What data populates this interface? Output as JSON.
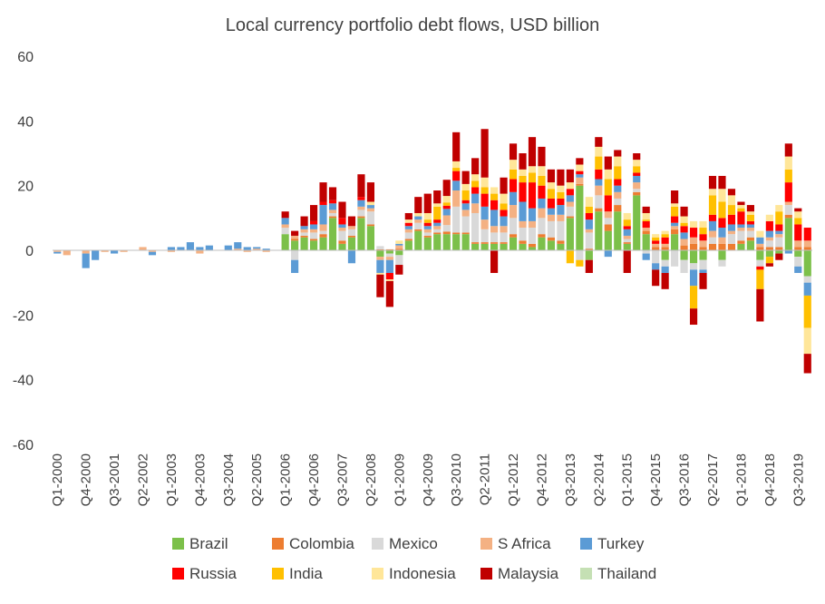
{
  "chart_data": {
    "type": "bar",
    "stacked": true,
    "title": "Local currency portfolio debt flows, USD billion",
    "xlabel": "",
    "ylabel": "",
    "ylim": [
      -60,
      60
    ],
    "yticks": [
      60,
      40,
      20,
      0,
      -20,
      -40,
      -60
    ],
    "grid": false,
    "legend_position": "bottom",
    "x_tick_labels": [
      "Q1-2000",
      "Q4-2000",
      "Q3-2001",
      "Q2-2002",
      "Q1-2003",
      "Q4-2003",
      "Q3-2004",
      "Q2-2005",
      "Q1-2006",
      "Q4-2006",
      "Q3-2007",
      "Q2-2008",
      "Q1-2009",
      "Q4-2009",
      "Q3-2010",
      "Q2-2011",
      "Q1-2012",
      "Q4-2012",
      "Q3-2013",
      "Q2-2014",
      "Q1-2015",
      "Q4-2015",
      "Q3-2016",
      "Q2-2017",
      "Q1-2018",
      "Q4-2018",
      "Q3-2019"
    ],
    "x_tick_every": 3,
    "series_names": [
      "Brazil",
      "Colombia",
      "Mexico",
      "S Africa",
      "Turkey",
      "Russia",
      "India",
      "Indonesia",
      "Malaysia",
      "Thailand"
    ],
    "series_colors": [
      "#7cc04a",
      "#ed7d31",
      "#d9d9d9",
      "#f4b183",
      "#5b9bd5",
      "#ff0000",
      "#ffc000",
      "#ffe699",
      "#c00000",
      "#c5e0b4"
    ],
    "x": [
      "Q1-2000",
      "Q2-2000",
      "Q3-2000",
      "Q4-2000",
      "Q1-2001",
      "Q2-2001",
      "Q3-2001",
      "Q4-2001",
      "Q1-2002",
      "Q2-2002",
      "Q3-2002",
      "Q4-2002",
      "Q1-2003",
      "Q2-2003",
      "Q3-2003",
      "Q4-2003",
      "Q1-2004",
      "Q2-2004",
      "Q3-2004",
      "Q4-2004",
      "Q1-2005",
      "Q2-2005",
      "Q3-2005",
      "Q4-2005",
      "Q1-2006",
      "Q2-2006",
      "Q3-2006",
      "Q4-2006",
      "Q1-2007",
      "Q2-2007",
      "Q3-2007",
      "Q4-2007",
      "Q1-2008",
      "Q2-2008",
      "Q3-2008",
      "Q4-2008",
      "Q1-2009",
      "Q2-2009",
      "Q3-2009",
      "Q4-2009",
      "Q1-2010",
      "Q2-2010",
      "Q3-2010",
      "Q4-2010",
      "Q1-2011",
      "Q2-2011",
      "Q3-2011",
      "Q4-2011",
      "Q1-2012",
      "Q2-2012",
      "Q3-2012",
      "Q4-2012",
      "Q1-2013",
      "Q2-2013",
      "Q3-2013",
      "Q4-2013",
      "Q1-2014",
      "Q2-2014",
      "Q3-2014",
      "Q4-2014",
      "Q1-2015",
      "Q2-2015",
      "Q3-2015",
      "Q4-2015",
      "Q1-2016",
      "Q2-2016",
      "Q3-2016",
      "Q4-2016",
      "Q1-2017",
      "Q2-2017",
      "Q3-2017",
      "Q4-2017",
      "Q1-2018",
      "Q2-2018",
      "Q3-2018",
      "Q4-2018",
      "Q1-2019",
      "Q2-2019",
      "Q3-2019",
      "Q4-2019"
    ],
    "series": [
      {
        "name": "Brazil",
        "values": [
          0,
          0,
          0,
          0,
          0,
          0,
          0,
          0,
          0,
          0,
          0,
          0,
          0,
          0,
          0,
          0,
          0,
          0,
          0,
          0,
          0,
          0,
          0,
          0,
          5,
          3,
          4,
          3,
          4,
          10,
          2,
          4,
          10,
          7.5,
          -2,
          -1,
          -1.5,
          3,
          6,
          4,
          5,
          5,
          5,
          5,
          2,
          2,
          2,
          2,
          4,
          2,
          1,
          4,
          3,
          2,
          10,
          20,
          -3,
          12,
          6,
          12,
          2,
          17,
          5,
          0,
          -3,
          5,
          -3,
          -4,
          -3,
          0,
          -3,
          0,
          2,
          3,
          -3,
          -2,
          -1,
          10,
          -2,
          -8
        ]
      },
      {
        "name": "Colombia",
        "values": [
          0,
          0,
          0,
          0,
          0,
          0,
          0,
          0,
          0,
          0,
          0,
          0,
          0,
          0,
          0,
          0,
          0,
          0,
          0,
          0,
          0,
          0,
          0,
          0,
          0,
          0.5,
          0.5,
          0.5,
          1,
          0.5,
          1,
          0.5,
          0.5,
          0.5,
          0.3,
          0.3,
          0.5,
          0.5,
          0.5,
          0.5,
          0.5,
          0.8,
          0.5,
          0.5,
          0.5,
          0.5,
          0.5,
          0.5,
          1,
          1,
          1,
          1,
          1,
          1,
          0.5,
          0.5,
          0.5,
          1,
          2,
          2,
          0.5,
          1,
          1,
          1,
          1,
          1.5,
          1.5,
          2,
          1,
          2,
          2,
          2,
          1,
          1,
          1,
          1,
          1,
          1,
          1,
          1
        ]
      },
      {
        "name": "Mexico",
        "values": [
          0,
          0,
          0,
          0,
          0,
          0,
          0,
          0,
          0,
          0,
          0,
          0,
          0,
          0,
          0,
          0,
          0,
          0,
          0,
          0,
          0,
          0,
          0,
          0,
          2,
          -3,
          1,
          2,
          1,
          1,
          3,
          2,
          2,
          4,
          1,
          -1,
          -3,
          2,
          2,
          1,
          1,
          2,
          8,
          5,
          9,
          4,
          3,
          3,
          5,
          4,
          5,
          5,
          5,
          6,
          3,
          -3,
          5,
          4,
          2,
          2,
          1,
          1,
          -1,
          -4,
          -2,
          -5,
          -4,
          -2,
          -3,
          2,
          -2,
          3,
          3,
          2,
          -2,
          2,
          3,
          3,
          -3,
          -2
        ]
      },
      {
        "name": "S Africa",
        "values": [
          -0.5,
          -1.5,
          0,
          -1,
          0,
          -0.5,
          0,
          -0.5,
          0,
          1,
          -0.5,
          0,
          -0.5,
          0,
          0,
          -1,
          0,
          0,
          0,
          0.5,
          -0.5,
          0.5,
          -0.5,
          0,
          1,
          1,
          1,
          1,
          2,
          1,
          1,
          1,
          1,
          1,
          -1,
          -1,
          1,
          1,
          1,
          1,
          1,
          3,
          5,
          2,
          3,
          3,
          2,
          2,
          4,
          2,
          2,
          3,
          2,
          2,
          1.5,
          2,
          1,
          3,
          2,
          2,
          1,
          2,
          1,
          1,
          1,
          1,
          2,
          2,
          2,
          2,
          2,
          1,
          1,
          1,
          1,
          1,
          1,
          1,
          2,
          2
        ]
      },
      {
        "name": "Turkey",
        "values": [
          -0.5,
          0,
          0,
          -4.5,
          -3,
          0,
          -1,
          0,
          0,
          0,
          -1,
          0,
          1,
          1,
          2.5,
          1,
          1.5,
          0,
          1.5,
          2,
          1,
          0.5,
          0.5,
          0,
          2,
          -4,
          1,
          1.5,
          6,
          2,
          1,
          -4,
          2,
          1,
          -4,
          -4,
          0.5,
          1,
          1,
          1,
          1,
          2,
          3,
          2,
          3,
          4,
          5,
          3,
          4,
          6,
          4,
          3,
          2,
          3,
          2,
          1,
          3,
          2,
          -2,
          2,
          2,
          2,
          -2,
          -2,
          -2,
          1,
          2,
          -5,
          -1,
          3,
          3,
          2,
          1,
          1,
          2,
          2,
          1,
          -1,
          -2,
          -4
        ]
      },
      {
        "name": "Russia",
        "values": [
          0,
          0,
          0,
          0,
          0,
          0,
          0,
          0,
          0,
          0,
          0,
          0,
          0,
          0,
          0,
          0,
          0,
          0,
          0,
          0,
          0,
          0,
          0,
          0,
          0,
          0,
          0,
          1,
          1,
          1,
          2,
          0,
          1,
          0,
          0,
          -2,
          0,
          1,
          0,
          1,
          1,
          1,
          3,
          1,
          2,
          4,
          3,
          2,
          4,
          6,
          8,
          4,
          3,
          2,
          2,
          1,
          2,
          3,
          5,
          2,
          1,
          1,
          2,
          1,
          2,
          2,
          2,
          3,
          2,
          2,
          3,
          3,
          4,
          1,
          -1,
          3,
          2,
          6,
          5,
          4
        ]
      },
      {
        "name": "India",
        "values": [
          0,
          0,
          0,
          0,
          0,
          0,
          0,
          0,
          0,
          0,
          0,
          0,
          0,
          0,
          0,
          0,
          0,
          0,
          0,
          0,
          0,
          0,
          0,
          0,
          0,
          0,
          0,
          0,
          0,
          0,
          0,
          0,
          0,
          0,
          0,
          0,
          0,
          0,
          0,
          1,
          4,
          1,
          1,
          3,
          2,
          2,
          2,
          2,
          3,
          2,
          3,
          3,
          3,
          2,
          -4,
          -2,
          2,
          4,
          5,
          4,
          2,
          2,
          0.5,
          1,
          1,
          3,
          1,
          -7,
          2,
          6,
          5,
          3,
          1,
          2,
          -6,
          -2,
          4,
          4,
          2,
          -10
        ]
      },
      {
        "name": "Indonesia",
        "values": [
          0,
          0,
          0,
          0,
          0,
          0,
          0,
          0,
          0,
          0,
          0,
          0,
          0,
          0,
          0,
          0,
          0,
          0,
          0,
          0,
          0,
          0,
          0,
          0,
          0,
          0,
          0,
          0,
          0,
          0,
          0,
          0,
          0,
          1,
          -0.5,
          -0.5,
          1,
          1,
          1,
          2,
          1,
          2,
          2,
          2,
          2,
          3,
          2,
          3,
          3,
          2,
          2,
          3,
          2,
          2,
          2,
          2,
          3,
          3,
          3,
          3,
          2,
          2,
          2,
          1,
          1,
          1,
          2,
          2,
          2,
          2,
          4,
          3,
          1,
          1,
          2,
          2,
          2,
          4,
          2,
          -8
        ]
      },
      {
        "name": "Malaysia",
        "values": [
          0,
          0,
          0,
          0,
          0,
          0,
          0,
          0,
          0,
          0,
          0,
          0,
          0,
          0,
          0,
          0,
          0,
          0,
          0,
          0,
          0,
          0,
          0,
          0,
          2,
          1.5,
          3,
          5,
          6,
          4,
          5,
          3,
          7,
          6,
          -7,
          -8,
          -3,
          2,
          5,
          6,
          4,
          5,
          9,
          4,
          5,
          15,
          -7,
          5,
          5,
          5,
          9,
          6,
          4,
          5,
          4,
          2,
          -4,
          3,
          4,
          2,
          -7,
          2,
          2,
          -5,
          -5,
          4,
          3,
          -5,
          -5,
          4,
          4,
          2,
          1,
          2,
          -10,
          -1,
          -2,
          4,
          1,
          -6
        ]
      },
      {
        "name": "Thailand",
        "values": [
          0,
          0,
          0,
          0,
          0,
          0,
          0,
          0,
          0,
          0,
          0,
          0,
          0,
          0,
          0,
          0,
          0,
          0,
          0,
          0,
          0,
          0,
          0,
          0,
          0,
          0,
          0,
          0,
          0,
          0,
          0,
          0,
          0,
          0,
          0,
          0,
          0,
          0,
          0,
          0,
          0,
          0,
          0,
          0,
          0,
          0,
          0,
          0,
          0,
          0,
          0,
          0,
          0,
          0,
          0,
          0,
          0,
          0,
          0,
          0,
          0,
          0,
          0,
          0,
          0,
          0,
          0,
          0,
          0,
          0,
          0,
          0,
          0,
          0,
          0,
          0,
          0,
          0,
          0,
          0
        ]
      }
    ]
  }
}
